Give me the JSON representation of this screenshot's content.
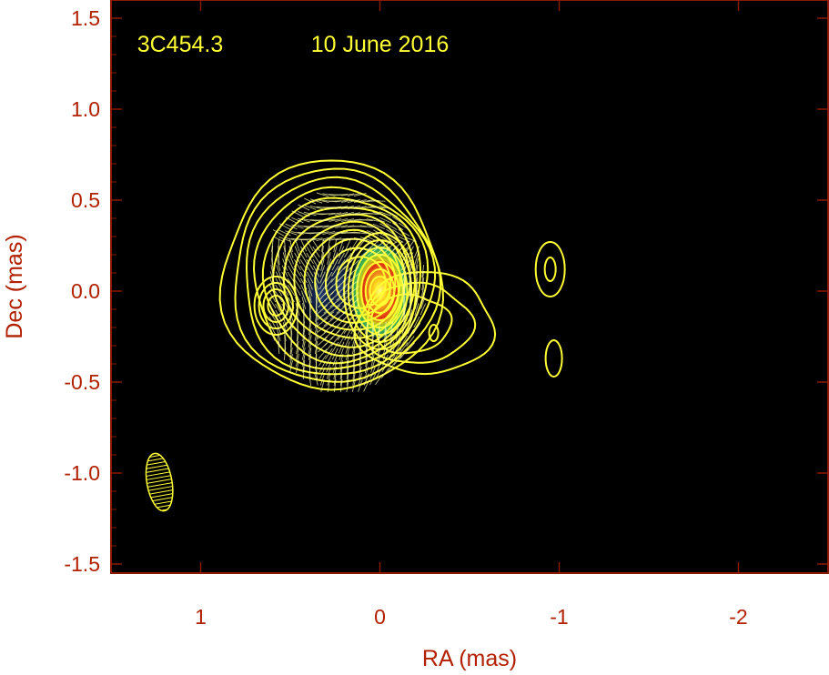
{
  "chart_data": {
    "type": "heatmap",
    "title": "",
    "xlabel": "RA (mas)",
    "ylabel": "Dec (mas)",
    "xlim": [
      1.5,
      -2.5
    ],
    "ylim": [
      -1.55,
      1.6
    ],
    "x_ticks": [
      1,
      0,
      -1,
      -2
    ],
    "x_tick_labels": [
      "1",
      "0",
      "-1",
      "-2"
    ],
    "y_ticks": [
      1.5,
      1.0,
      0.5,
      0.0,
      -0.5,
      -1.0,
      -1.5
    ],
    "y_tick_labels": [
      "1.5",
      "1.0",
      "0.5",
      "0.0",
      "-0.5",
      "-1.0",
      "-1.5"
    ],
    "annotations": [
      {
        "text": "3C454.3",
        "x": 1.07,
        "y": 1.36
      },
      {
        "text": "10 June 2016",
        "x": 0.0,
        "y": 1.36
      }
    ],
    "background_color": "#000000",
    "frame_color": "#8b1a00",
    "label_color": "#b22000",
    "contour_color": "#ffff33",
    "core_peak": {
      "x": 0.0,
      "y": 0.0
    },
    "colormap": [
      "#0a1a4a",
      "#1b5f7a",
      "#1f9a6a",
      "#5fbf3a",
      "#c9c21c",
      "#e8731a",
      "#e03010",
      "#ffd21a",
      "#ffff80"
    ],
    "beam": {
      "x": 1.23,
      "y": -1.05,
      "major": 0.32,
      "minor": 0.14,
      "pa_deg": -10
    }
  }
}
